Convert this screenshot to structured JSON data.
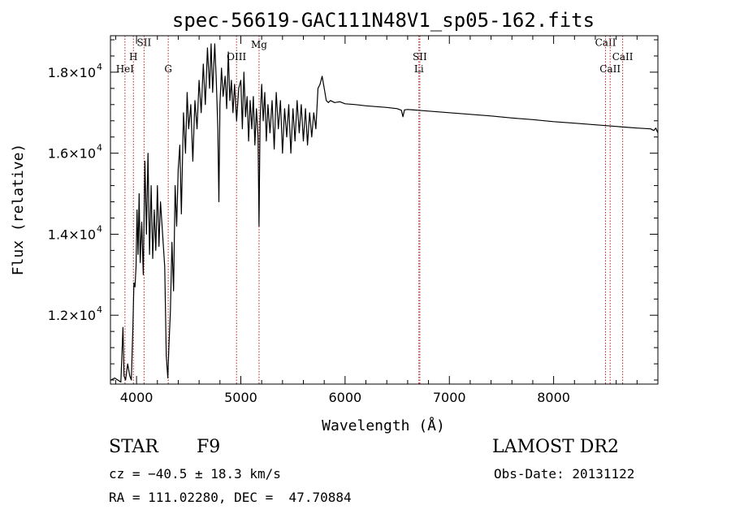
{
  "chart_data": {
    "type": "line",
    "title": "spec-56619-GAC111N48V1_sp05-162.fits",
    "xlabel": "Wavelength (Å)",
    "ylabel": "Flux (relative)",
    "xlim": [
      3750,
      9000
    ],
    "ylim": [
      10300,
      18900
    ],
    "x_ticks": [
      {
        "value": 4000,
        "label": "4000"
      },
      {
        "value": 5000,
        "label": "5000"
      },
      {
        "value": 6000,
        "label": "6000"
      },
      {
        "value": 7000,
        "label": "7000"
      },
      {
        "value": 8000,
        "label": "8000"
      }
    ],
    "y_ticks": [
      {
        "value": 12000,
        "mantissa": "1.2×10",
        "exp": "4"
      },
      {
        "value": 14000,
        "mantissa": "1.4×10",
        "exp": "4"
      },
      {
        "value": 16000,
        "mantissa": "1.6×10",
        "exp": "4"
      },
      {
        "value": 18000,
        "mantissa": "1.8×10",
        "exp": "4"
      }
    ],
    "grid": false,
    "series": [
      {
        "color": "#000000",
        "points": [
          [
            3755,
            10400
          ],
          [
            3790,
            10450
          ],
          [
            3820,
            10400
          ],
          [
            3850,
            10350
          ],
          [
            3870,
            11700
          ],
          [
            3880,
            10500
          ],
          [
            3895,
            10400
          ],
          [
            3915,
            10800
          ],
          [
            3935,
            10500
          ],
          [
            3950,
            10400
          ],
          [
            3965,
            11700
          ],
          [
            3975,
            12800
          ],
          [
            3985,
            12700
          ],
          [
            3995,
            13200
          ],
          [
            4005,
            14600
          ],
          [
            4015,
            13500
          ],
          [
            4025,
            15000
          ],
          [
            4035,
            13300
          ],
          [
            4050,
            14300
          ],
          [
            4065,
            13000
          ],
          [
            4080,
            15800
          ],
          [
            4095,
            14000
          ],
          [
            4110,
            16000
          ],
          [
            4125,
            13500
          ],
          [
            4140,
            15200
          ],
          [
            4155,
            13400
          ],
          [
            4170,
            14600
          ],
          [
            4185,
            13600
          ],
          [
            4200,
            15200
          ],
          [
            4215,
            13700
          ],
          [
            4230,
            14800
          ],
          [
            4250,
            14000
          ],
          [
            4270,
            13200
          ],
          [
            4285,
            11000
          ],
          [
            4300,
            10450
          ],
          [
            4310,
            11200
          ],
          [
            4325,
            12100
          ],
          [
            4340,
            13800
          ],
          [
            4355,
            12600
          ],
          [
            4370,
            15200
          ],
          [
            4385,
            14200
          ],
          [
            4400,
            15600
          ],
          [
            4415,
            16200
          ],
          [
            4430,
            14500
          ],
          [
            4450,
            17000
          ],
          [
            4470,
            16000
          ],
          [
            4485,
            17500
          ],
          [
            4500,
            16600
          ],
          [
            4520,
            17200
          ],
          [
            4540,
            15800
          ],
          [
            4560,
            17300
          ],
          [
            4580,
            16600
          ],
          [
            4600,
            17800
          ],
          [
            4620,
            17000
          ],
          [
            4640,
            18200
          ],
          [
            4660,
            17200
          ],
          [
            4680,
            18600
          ],
          [
            4700,
            17600
          ],
          [
            4715,
            18700
          ],
          [
            4730,
            17500
          ],
          [
            4750,
            18700
          ],
          [
            4765,
            17800
          ],
          [
            4780,
            16600
          ],
          [
            4790,
            14800
          ],
          [
            4800,
            17200
          ],
          [
            4815,
            18100
          ],
          [
            4830,
            17400
          ],
          [
            4850,
            17900
          ],
          [
            4865,
            17100
          ],
          [
            4880,
            18500
          ],
          [
            4895,
            17300
          ],
          [
            4910,
            17800
          ],
          [
            4925,
            17000
          ],
          [
            4940,
            17700
          ],
          [
            4960,
            16800
          ],
          [
            4980,
            17600
          ],
          [
            5000,
            17800
          ],
          [
            5015,
            16600
          ],
          [
            5030,
            18000
          ],
          [
            5045,
            16900
          ],
          [
            5060,
            17400
          ],
          [
            5075,
            16300
          ],
          [
            5090,
            17300
          ],
          [
            5105,
            16600
          ],
          [
            5120,
            17400
          ],
          [
            5135,
            16200
          ],
          [
            5150,
            17100
          ],
          [
            5165,
            16400
          ],
          [
            5175,
            14200
          ],
          [
            5185,
            16800
          ],
          [
            5200,
            17700
          ],
          [
            5215,
            16800
          ],
          [
            5230,
            17500
          ],
          [
            5245,
            16300
          ],
          [
            5260,
            17200
          ],
          [
            5280,
            16500
          ],
          [
            5300,
            17300
          ],
          [
            5320,
            16100
          ],
          [
            5340,
            17500
          ],
          [
            5360,
            16600
          ],
          [
            5380,
            17300
          ],
          [
            5400,
            16000
          ],
          [
            5420,
            17100
          ],
          [
            5440,
            16400
          ],
          [
            5460,
            17200
          ],
          [
            5480,
            16000
          ],
          [
            5500,
            17100
          ],
          [
            5520,
            16300
          ],
          [
            5540,
            17300
          ],
          [
            5560,
            16500
          ],
          [
            5580,
            17200
          ],
          [
            5600,
            16300
          ],
          [
            5620,
            17100
          ],
          [
            5640,
            16200
          ],
          [
            5660,
            17000
          ],
          [
            5680,
            16400
          ],
          [
            5700,
            17000
          ],
          [
            5720,
            16600
          ],
          [
            5740,
            17600
          ],
          [
            5760,
            17700
          ],
          [
            5780,
            17900
          ],
          [
            5800,
            17600
          ],
          [
            5820,
            17300
          ],
          [
            5840,
            17250
          ],
          [
            5860,
            17300
          ],
          [
            5900,
            17250
          ],
          [
            5950,
            17270
          ],
          [
            6000,
            17220
          ],
          [
            6100,
            17200
          ],
          [
            6200,
            17170
          ],
          [
            6300,
            17150
          ],
          [
            6400,
            17130
          ],
          [
            6500,
            17100
          ],
          [
            6540,
            17060
          ],
          [
            6555,
            16900
          ],
          [
            6570,
            17070
          ],
          [
            6600,
            17080
          ],
          [
            6700,
            17060
          ],
          [
            6800,
            17040
          ],
          [
            7000,
            17000
          ],
          [
            7200,
            16960
          ],
          [
            7400,
            16920
          ],
          [
            7600,
            16870
          ],
          [
            7800,
            16830
          ],
          [
            8000,
            16780
          ],
          [
            8200,
            16740
          ],
          [
            8400,
            16700
          ],
          [
            8600,
            16660
          ],
          [
            8800,
            16620
          ],
          [
            8930,
            16600
          ],
          [
            8960,
            16560
          ],
          [
            8980,
            16620
          ],
          [
            9000,
            16500
          ]
        ]
      }
    ],
    "line_markers": [
      {
        "wavelength": 3889,
        "label": "HeI",
        "label_flux": 18000
      },
      {
        "wavelength": 3970,
        "label": "H",
        "label_flux": 18300
      },
      {
        "wavelength": 4072,
        "label": "SII",
        "label_flux": 18650
      },
      {
        "wavelength": 4304,
        "label": "G",
        "label_flux": 18000
      },
      {
        "wavelength": 4959,
        "label": "OIII",
        "label_flux": 18300
      },
      {
        "wavelength": 5175,
        "label": "Mg",
        "label_flux": 18600
      },
      {
        "wavelength": 6717,
        "label": "SII",
        "label_flux": 18300
      },
      {
        "wavelength": 6708,
        "label": "Li",
        "label_flux": 18000
      },
      {
        "wavelength": 8498,
        "label": "CaII",
        "label_flux": 18650
      },
      {
        "wavelength": 8542,
        "label": "CaII",
        "label_flux": 18000
      },
      {
        "wavelength": 8662,
        "label": "CaII",
        "label_flux": 18300
      }
    ]
  },
  "info": {
    "object_class": "STAR",
    "subclass": "F9",
    "cz": "cz = −40.5 ± 18.3 km/s",
    "coords": "RA = 111.02280, DEC =  47.70884",
    "survey": "LAMOST DR2",
    "obs_date": "Obs-Date: 20131122"
  }
}
